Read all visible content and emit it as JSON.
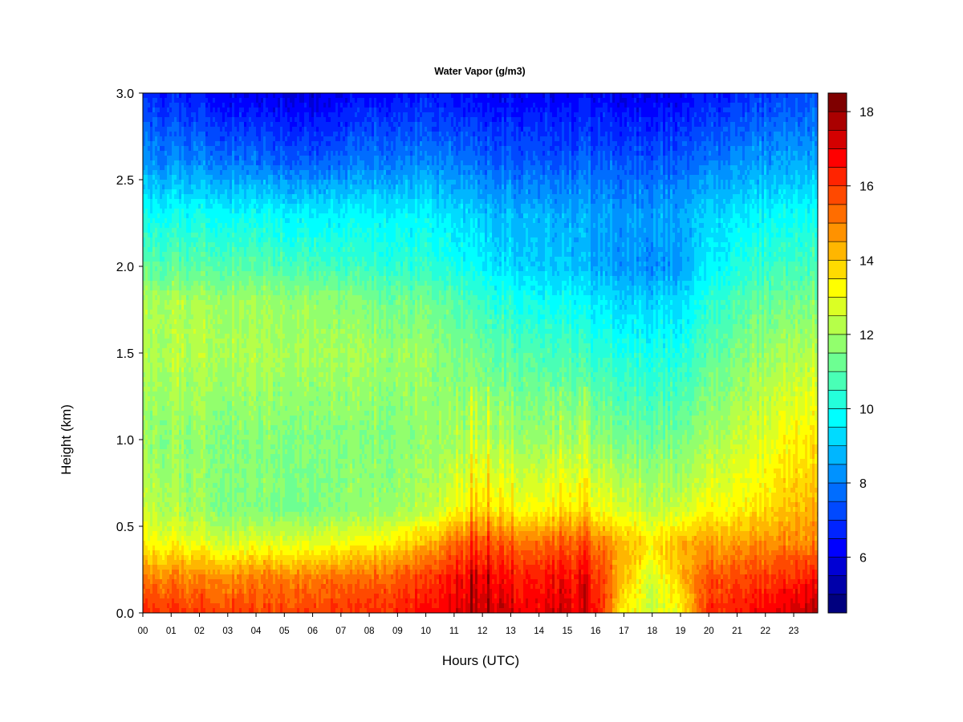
{
  "chart_data": {
    "type": "heatmap",
    "title": "Water Vapor (g/m3)",
    "xlabel": "Hours (UTC)",
    "ylabel": "Height (km)",
    "x_range": [
      0,
      23.85
    ],
    "ylim": [
      0,
      3
    ],
    "x_ticks": [
      0,
      1,
      2,
      3,
      4,
      5,
      6,
      7,
      8,
      9,
      10,
      11,
      12,
      13,
      14,
      15,
      16,
      17,
      18,
      19,
      20,
      21,
      22,
      23
    ],
    "x_tick_labels": [
      "00",
      "01",
      "02",
      "03",
      "04",
      "05",
      "06",
      "07",
      "08",
      "09",
      "10",
      "11",
      "12",
      "13",
      "14",
      "15",
      "16",
      "17",
      "18",
      "19",
      "20",
      "21",
      "22",
      "23"
    ],
    "y_ticks": [
      0,
      0.5,
      1.0,
      1.5,
      2.0,
      2.5,
      3.0
    ],
    "y_tick_labels": [
      "0.0",
      "0.5",
      "1.0",
      "1.5",
      "2.0",
      "2.5",
      "3.0"
    ],
    "colorbar": {
      "min": 4.5,
      "max": 18.5,
      "step": 0.5,
      "ticks": [
        6,
        8,
        10,
        12,
        14,
        16,
        18
      ],
      "tick_labels": [
        "6",
        "8",
        "10",
        "12",
        "14",
        "16",
        "18"
      ],
      "colors": [
        "#00007f",
        "#0000aa",
        "#0000d4",
        "#0000ff",
        "#0024ff",
        "#0049ff",
        "#006dff",
        "#0092ff",
        "#00b6ff",
        "#00dbff",
        "#00ffff",
        "#24ffdb",
        "#49ffb6",
        "#6dff92",
        "#92ff6d",
        "#b6ff49",
        "#dbff24",
        "#ffff00",
        "#ffdb00",
        "#ffb600",
        "#ff9200",
        "#ff6d00",
        "#ff4900",
        "#ff2400",
        "#ff0000",
        "#d40000",
        "#aa0000",
        "#7f0000"
      ]
    },
    "field": {
      "description_profile_heights_km": [
        0,
        0.2,
        0.4,
        0.6,
        1.0,
        1.5,
        1.8,
        2.0,
        2.3,
        2.6,
        3.0
      ],
      "profiles": [
        {
          "hour": 0,
          "values": [
            16.2,
            15.0,
            13.3,
            12.4,
            11.8,
            12.2,
            12.1,
            11.0,
            9.9,
            8.3,
            6.8
          ]
        },
        {
          "hour": 3,
          "values": [
            15.9,
            15.0,
            12.8,
            11.6,
            11.6,
            12.2,
            12.0,
            11.0,
            9.9,
            8.0,
            6.2
          ]
        },
        {
          "hour": 6,
          "values": [
            15.9,
            15.1,
            12.9,
            11.4,
            11.5,
            12.0,
            11.8,
            10.7,
            9.6,
            7.5,
            5.8
          ]
        },
        {
          "hour": 8,
          "values": [
            16.2,
            15.4,
            13.3,
            11.8,
            11.6,
            12.0,
            11.5,
            10.5,
            9.7,
            8.0,
            6.4
          ]
        },
        {
          "hour": 10,
          "values": [
            16.6,
            15.9,
            14.1,
            12.1,
            11.7,
            11.8,
            11.2,
            10.3,
            9.6,
            8.0,
            6.5
          ]
        },
        {
          "hour": 11,
          "values": [
            17.0,
            16.5,
            15.2,
            13.0,
            11.9,
            11.5,
            11.0,
            10.0,
            9.4,
            8.0,
            6.4
          ]
        },
        {
          "hour": 12,
          "values": [
            17.2,
            16.8,
            15.6,
            13.6,
            12.2,
            11.2,
            10.4,
            9.6,
            9.0,
            7.6,
            6.1
          ]
        },
        {
          "hour": 13,
          "values": [
            17.1,
            16.6,
            15.4,
            13.3,
            12.0,
            11.0,
            10.2,
            9.3,
            8.8,
            7.6,
            6.2
          ]
        },
        {
          "hour": 14,
          "values": [
            16.9,
            16.4,
            15.2,
            13.1,
            11.8,
            10.8,
            9.9,
            9.0,
            8.7,
            7.5,
            6.2
          ]
        },
        {
          "hour": 15,
          "values": [
            17.0,
            16.6,
            15.4,
            13.5,
            11.9,
            10.7,
            9.8,
            9.0,
            8.6,
            7.4,
            6.1
          ]
        },
        {
          "hour": 16,
          "values": [
            16.8,
            16.3,
            15.3,
            13.2,
            11.8,
            10.4,
            9.5,
            8.6,
            8.6,
            7.6,
            6.3
          ]
        },
        {
          "hour": 17,
          "values": [
            13.4,
            14.3,
            14.4,
            12.8,
            11.5,
            10.2,
            9.3,
            8.4,
            8.5,
            7.5,
            6.1
          ]
        },
        {
          "hour": 18,
          "values": [
            12.6,
            12.6,
            13.6,
            12.4,
            11.3,
            10.1,
            9.2,
            8.3,
            8.5,
            7.5,
            6.1
          ]
        },
        {
          "hour": 19,
          "values": [
            13.2,
            14.2,
            14.4,
            12.6,
            11.4,
            10.2,
            9.3,
            8.5,
            8.6,
            7.6,
            6.2
          ]
        },
        {
          "hour": 20,
          "values": [
            16.2,
            15.6,
            14.5,
            13.1,
            12.0,
            10.8,
            10.2,
            9.5,
            9.1,
            7.9,
            6.5
          ]
        },
        {
          "hour": 21,
          "values": [
            16.4,
            15.8,
            14.6,
            13.3,
            12.4,
            11.4,
            10.8,
            10.1,
            9.5,
            8.2,
            6.8
          ]
        },
        {
          "hour": 22,
          "values": [
            16.7,
            16.0,
            14.8,
            13.6,
            12.8,
            11.8,
            11.2,
            10.5,
            9.7,
            8.4,
            7.0
          ]
        },
        {
          "hour": 23,
          "values": [
            17.3,
            16.3,
            15.0,
            14.2,
            13.4,
            12.2,
            11.4,
            10.7,
            9.9,
            8.6,
            7.2
          ]
        },
        {
          "hour": 23.85,
          "values": [
            17.8,
            16.6,
            15.0,
            14.4,
            13.6,
            12.3,
            11.5,
            10.8,
            10.0,
            8.7,
            7.3
          ]
        }
      ]
    }
  }
}
